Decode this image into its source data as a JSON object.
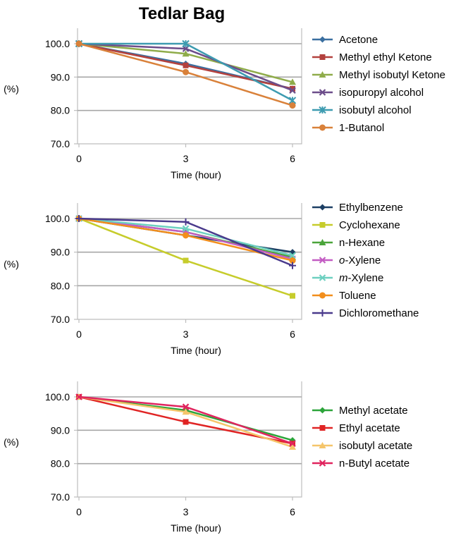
{
  "title": "Tedlar Bag",
  "chart_data": [
    {
      "type": "line",
      "ylabel": "(%)",
      "xlabel": "Time (hour)",
      "x": [
        0,
        3,
        6
      ],
      "ylim": [
        70,
        100
      ],
      "yticks": [
        "70.0",
        "80.0",
        "90.0",
        "100.0"
      ],
      "xticks": [
        "0",
        "3",
        "6"
      ],
      "grid": true,
      "legend_position": "right",
      "series": [
        {
          "name": "Acetone",
          "color": "#3a6fa0",
          "marker": "diamond",
          "values": [
            100.0,
            94.0,
            86.5
          ]
        },
        {
          "name": "Methyl ethyl Ketone",
          "color": "#b3413e",
          "marker": "square",
          "values": [
            100.0,
            93.5,
            86.5
          ]
        },
        {
          "name": "Methyl isobutyl Ketone",
          "color": "#8fac4a",
          "marker": "triangle",
          "values": [
            100.0,
            97.0,
            88.5
          ]
        },
        {
          "name": "isopuropyl alcohol",
          "color": "#6c4d8a",
          "marker": "x",
          "values": [
            100.0,
            98.5,
            86.0
          ]
        },
        {
          "name": "isobutyl alcohol",
          "color": "#3d9bb0",
          "marker": "star",
          "values": [
            100.0,
            100.0,
            83.0
          ]
        },
        {
          "name": "1-Butanol",
          "color": "#d9813a",
          "marker": "circle",
          "values": [
            100.0,
            91.5,
            81.5
          ]
        }
      ]
    },
    {
      "type": "line",
      "ylabel": "(%)",
      "xlabel": "Time (hour)",
      "x": [
        0,
        3,
        6
      ],
      "ylim": [
        70,
        100
      ],
      "yticks": [
        "70.0",
        "80.0",
        "90.0",
        "100.0"
      ],
      "xticks": [
        "0",
        "3",
        "6"
      ],
      "grid": true,
      "legend_position": "right",
      "series": [
        {
          "name": "Ethylbenzene",
          "color": "#1c3f64",
          "marker": "diamond",
          "values": [
            100.0,
            95.0,
            90.0
          ]
        },
        {
          "name": "Cyclohexane",
          "color": "#c6cc2b",
          "marker": "square",
          "values": [
            100.0,
            87.5,
            77.0
          ]
        },
        {
          "name": "n-Hexane",
          "color": "#4aa43a",
          "marker": "triangle",
          "values": [
            100.0,
            96.0,
            88.5
          ]
        },
        {
          "name": "o-Xylene",
          "color": "#c35cc3",
          "marker": "x",
          "values": [
            100.0,
            96.0,
            88.0
          ]
        },
        {
          "name": "m-Xylene",
          "color": "#6dd0c0",
          "marker": "x",
          "values": [
            100.0,
            97.0,
            89.0
          ]
        },
        {
          "name": "Toluene",
          "color": "#f28e1c",
          "marker": "circle",
          "values": [
            100.0,
            95.0,
            87.5
          ]
        },
        {
          "name": "Dichloromethane",
          "color": "#4a3a8c",
          "marker": "plus",
          "values": [
            100.0,
            99.0,
            86.0
          ]
        }
      ]
    },
    {
      "type": "line",
      "ylabel": "(%)",
      "xlabel": "Time (hour)",
      "x": [
        0,
        3,
        6
      ],
      "ylim": [
        70,
        100
      ],
      "yticks": [
        "70.0",
        "80.0",
        "90.0",
        "100.0"
      ],
      "xticks": [
        "0",
        "3",
        "6"
      ],
      "grid": true,
      "legend_position": "right",
      "series": [
        {
          "name": "Methyl acetate",
          "color": "#2ca43a",
          "marker": "diamond",
          "values": [
            100.0,
            96.0,
            87.0
          ]
        },
        {
          "name": "Ethyl acetate",
          "color": "#e02424",
          "marker": "square",
          "values": [
            100.0,
            92.5,
            86.0
          ]
        },
        {
          "name": "isobutyl acetate",
          "color": "#f5c56a",
          "marker": "triangle",
          "values": [
            100.0,
            95.5,
            85.0
          ]
        },
        {
          "name": "n-Butyl acetate",
          "color": "#e0245e",
          "marker": "x",
          "values": [
            100.0,
            97.0,
            86.0
          ]
        }
      ]
    }
  ]
}
